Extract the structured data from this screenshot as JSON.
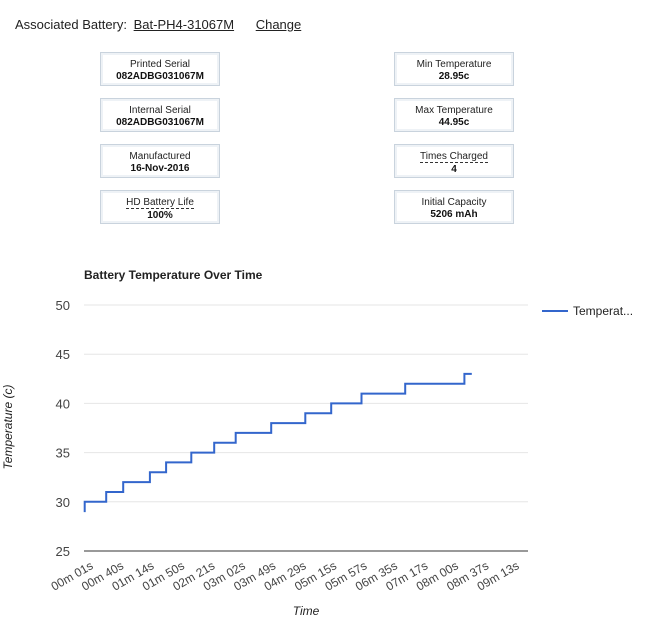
{
  "header": {
    "label": "Associated Battery:",
    "battery_id": "Bat-PH4-31067M",
    "change_label": "Change"
  },
  "cards_left": [
    {
      "label": "Printed Serial",
      "value": "082ADBG031067M",
      "dashed": false
    },
    {
      "label": "Internal Serial",
      "value": "082ADBG031067M",
      "dashed": false
    },
    {
      "label": "Manufactured",
      "value": "16-Nov-2016",
      "dashed": false
    },
    {
      "label": "HD Battery Life",
      "value": "100%",
      "dashed": true
    }
  ],
  "cards_right": [
    {
      "label": "Min Temperature",
      "value": "28.95c",
      "dashed": false
    },
    {
      "label": "Max Temperature",
      "value": "44.95c",
      "dashed": false
    },
    {
      "label": "Times Charged",
      "value": "4",
      "dashed": true
    },
    {
      "label": "Initial Capacity",
      "value": "5206 mAh",
      "dashed": false
    }
  ],
  "colors": {
    "line": "#3366cc",
    "grid": "#e6e6e6",
    "axis": "#333333"
  },
  "chart_data": {
    "type": "line",
    "title": "Battery Temperature Over Time",
    "xlabel": "Time",
    "ylabel": "Temperature (c)",
    "ylim": [
      25,
      50
    ],
    "yticks": [
      25,
      30,
      35,
      40,
      45,
      50
    ],
    "xlim": [
      0,
      600
    ],
    "x_unit": "seconds",
    "x_tick_labels": [
      "00m 01s",
      "00m 40s",
      "01m 14s",
      "01m 50s",
      "02m 21s",
      "03m 02s",
      "03m 49s",
      "04m 29s",
      "05m 15s",
      "05m 57s",
      "06m 35s",
      "07m 17s",
      "08m 00s",
      "08m 37s",
      "09m 13s"
    ],
    "legend": {
      "position": "right",
      "label": "Temperat..."
    },
    "series": [
      {
        "name": "Temperature",
        "x": [
          1,
          1,
          9,
          30,
          30,
          51,
          51,
          53,
          53,
          89,
          89,
          111,
          111,
          145,
          145,
          176,
          176,
          205,
          205,
          253,
          253,
          299,
          299,
          334,
          334,
          375,
          375,
          434,
          434,
          514,
          514,
          524
        ],
        "y": [
          28.95,
          30,
          30,
          30,
          31,
          31,
          31,
          31,
          32,
          32,
          33,
          33,
          34,
          34,
          35,
          35,
          36,
          36,
          37,
          37,
          38,
          38,
          39,
          39,
          40,
          40,
          41,
          41,
          42,
          42,
          43,
          43
        ]
      }
    ]
  }
}
